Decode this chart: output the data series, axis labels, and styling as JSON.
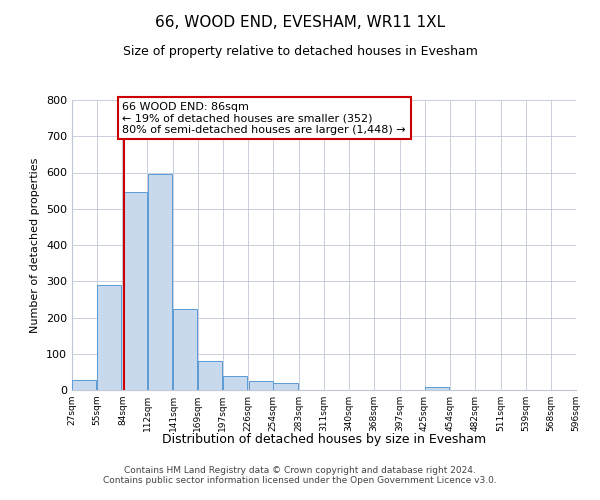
{
  "title": "66, WOOD END, EVESHAM, WR11 1XL",
  "subtitle": "Size of property relative to detached houses in Evesham",
  "xlabel": "Distribution of detached houses by size in Evesham",
  "ylabel": "Number of detached properties",
  "bar_left_edges": [
    27,
    55,
    84,
    112,
    141,
    169,
    197,
    226,
    254,
    283,
    311,
    340,
    368,
    397,
    425,
    454,
    482,
    511,
    539,
    568
  ],
  "bar_heights": [
    27,
    289,
    547,
    597,
    224,
    79,
    38,
    24,
    18,
    0,
    0,
    0,
    0,
    0,
    7,
    0,
    0,
    0,
    0,
    0
  ],
  "bin_width": 28,
  "bar_color": "#c8d9ee",
  "bar_edgecolor": "#5b9bd5",
  "property_value": 86,
  "vline_color": "#cc0000",
  "ylim": [
    0,
    800
  ],
  "yticks": [
    0,
    100,
    200,
    300,
    400,
    500,
    600,
    700,
    800
  ],
  "xtick_labels": [
    "27sqm",
    "55sqm",
    "84sqm",
    "112sqm",
    "141sqm",
    "169sqm",
    "197sqm",
    "226sqm",
    "254sqm",
    "283sqm",
    "311sqm",
    "340sqm",
    "368sqm",
    "397sqm",
    "425sqm",
    "454sqm",
    "482sqm",
    "511sqm",
    "539sqm",
    "568sqm",
    "596sqm"
  ],
  "annotation_title": "66 WOOD END: 86sqm",
  "annotation_line1": "← 19% of detached houses are smaller (352)",
  "annotation_line2": "80% of semi-detached houses are larger (1,448) →",
  "annotation_box_color": "#cc0000",
  "footer_line1": "Contains HM Land Registry data © Crown copyright and database right 2024.",
  "footer_line2": "Contains public sector information licensed under the Open Government Licence v3.0.",
  "bg_color": "#ffffff",
  "grid_color": "#c0c8d8"
}
